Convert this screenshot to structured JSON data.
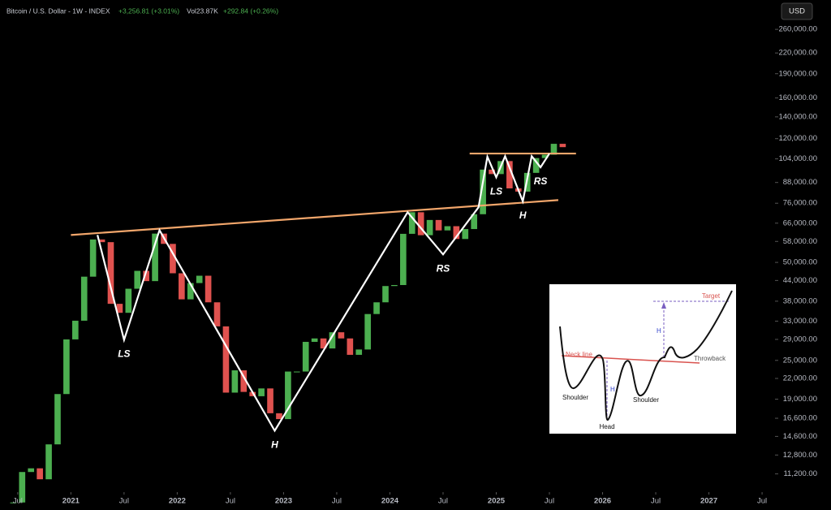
{
  "header": {
    "symbol": "Bitcoin / U.S. Dollar - 1W - INDEX",
    "change": "+3,256.81 (+3.01%)",
    "volume": "Vol23.87K",
    "volume_change": "+292.84 (+0.26%)",
    "currency": "USD"
  },
  "chart_data": {
    "type": "candlestick",
    "log_scale": true,
    "up_color": "#4caf50",
    "down_color": "#e0524f",
    "x": [
      "2020-06",
      "2020-07",
      "2020-08",
      "2020-09",
      "2020-10",
      "2020-11",
      "2020-12",
      "2021-01",
      "2021-02",
      "2021-03",
      "2021-04",
      "2021-05",
      "2021-06",
      "2021-07",
      "2021-08",
      "2021-09",
      "2021-10",
      "2021-11",
      "2021-12",
      "2022-01",
      "2022-02",
      "2022-03",
      "2022-04",
      "2022-05",
      "2022-06",
      "2022-07",
      "2022-08",
      "2022-09",
      "2022-10",
      "2022-11",
      "2022-12",
      "2023-01",
      "2023-02",
      "2023-03",
      "2023-04",
      "2023-05",
      "2023-06",
      "2023-07",
      "2023-08",
      "2023-09",
      "2023-10",
      "2023-11",
      "2023-12",
      "2024-01",
      "2024-02",
      "2024-03",
      "2024-04",
      "2024-05",
      "2024-06",
      "2024-07",
      "2024-08",
      "2024-09",
      "2024-10",
      "2024-11",
      "2024-12",
      "2025-01",
      "2025-02",
      "2025-03",
      "2025-04",
      "2025-05",
      "2025-06",
      "2025-07",
      "2025-08"
    ],
    "series": [
      {
        "values": [
          9150,
          11350,
          11650,
          10780,
          13800,
          19700,
          29000,
          33100,
          45200,
          58800,
          57700,
          37300,
          35000,
          41500,
          47100,
          43800,
          61300,
          57000,
          46300,
          38500,
          43200,
          45500,
          37700,
          31800,
          19900,
          23300,
          20000,
          19400,
          20500,
          17200,
          16500,
          23100,
          23100,
          28500,
          29200,
          27200,
          30500,
          29200,
          26000,
          27000,
          34700,
          37700,
          42300,
          42600,
          61200,
          71300,
          60600,
          67500,
          62700,
          64600,
          59000,
          63300,
          70300,
          96400,
          93400,
          102400,
          84400,
          82500,
          94200,
          104600,
          107100,
          115700,
          113000
        ]
      }
    ],
    "xlim": [
      "2020-05",
      "2027-08"
    ],
    "xticks": [
      {
        "value": "2020-07",
        "label": "Jul"
      },
      {
        "value": "2021-01",
        "label": "2021"
      },
      {
        "value": "2021-07",
        "label": "Jul"
      },
      {
        "value": "2022-01",
        "label": "2022"
      },
      {
        "value": "2022-07",
        "label": "Jul"
      },
      {
        "value": "2023-01",
        "label": "2023"
      },
      {
        "value": "2023-07",
        "label": "Jul"
      },
      {
        "value": "2024-01",
        "label": "2024"
      },
      {
        "value": "2024-07",
        "label": "Jul"
      },
      {
        "value": "2025-01",
        "label": "2025"
      },
      {
        "value": "2025-07",
        "label": "Jul"
      },
      {
        "value": "2026-01",
        "label": "2026"
      },
      {
        "value": "2026-07",
        "label": "Jul"
      },
      {
        "value": "2027-01",
        "label": "2027"
      },
      {
        "value": "2027-07",
        "label": "Jul"
      }
    ],
    "ylim": [
      9900,
      320000
    ],
    "yticks": [
      {
        "value": 260000,
        "label": "260,000.00"
      },
      {
        "value": 220000,
        "label": "220,000.00"
      },
      {
        "value": 190000,
        "label": "190,000.00"
      },
      {
        "value": 160000,
        "label": "160,000.00"
      },
      {
        "value": 140000,
        "label": "140,000.00"
      },
      {
        "value": 120000,
        "label": "120,000.00"
      },
      {
        "value": 104000,
        "label": "104,000.00"
      },
      {
        "value": 88000,
        "label": "88,000.00"
      },
      {
        "value": 76000,
        "label": "76,000.00"
      },
      {
        "value": 66000,
        "label": "66,000.00"
      },
      {
        "value": 58000,
        "label": "58,000.00"
      },
      {
        "value": 50000,
        "label": "50,000.00"
      },
      {
        "value": 44000,
        "label": "44,000.00"
      },
      {
        "value": 38000,
        "label": "38,000.00"
      },
      {
        "value": 33000,
        "label": "33,000.00"
      },
      {
        "value": 29000,
        "label": "29,000.00"
      },
      {
        "value": 25000,
        "label": "25,000.00"
      },
      {
        "value": 22000,
        "label": "22,000.00"
      },
      {
        "value": 19000,
        "label": "19,000.00"
      },
      {
        "value": 16600,
        "label": "16,600.00"
      },
      {
        "value": 14600,
        "label": "14,600.00"
      },
      {
        "value": 12800,
        "label": "12,800.00"
      },
      {
        "value": 11200,
        "label": "11,200.00"
      }
    ],
    "trendlines": [
      {
        "color": "#f2a66b",
        "points": [
          {
            "x": "2021-01",
            "y": 60700
          },
          {
            "x": "2025-08",
            "y": 77700
          }
        ]
      },
      {
        "color": "#f2a66b",
        "points": [
          {
            "x": "2024-10",
            "y": 108000
          },
          {
            "x": "2025-10",
            "y": 108000
          }
        ]
      }
    ],
    "pattern_line": {
      "color": "#ffffff",
      "points": [
        {
          "x": "2021-04",
          "y": 60700
        },
        {
          "x": "2021-07",
          "y": 28900,
          "label": "LS"
        },
        {
          "x": "2021-11",
          "y": 62800
        },
        {
          "x": "2022-12",
          "y": 15200,
          "label": "H"
        },
        {
          "x": "2024-03",
          "y": 71300
        },
        {
          "x": "2024-07",
          "y": 52900,
          "label": "RS"
        },
        {
          "x": "2024-11",
          "y": 73800
        },
        {
          "x": "2024-12",
          "y": 105600
        },
        {
          "x": "2025-01",
          "y": 91300,
          "label": "LS"
        },
        {
          "x": "2025-02",
          "y": 106000
        },
        {
          "x": "2025-04",
          "y": 77000,
          "label": "H"
        },
        {
          "x": "2025-05",
          "y": 106000
        },
        {
          "x": "2025-06",
          "y": 98000,
          "label": "RS"
        },
        {
          "x": "2025-07",
          "y": 108000
        }
      ]
    }
  },
  "inset": {
    "target": "Target",
    "neck_line": "Neck line",
    "throwback": "Throwback",
    "h_left": "H",
    "h_right": "H",
    "shoulder_left": "Shoulder",
    "head": "Head",
    "shoulder_right": "Shoulder"
  }
}
